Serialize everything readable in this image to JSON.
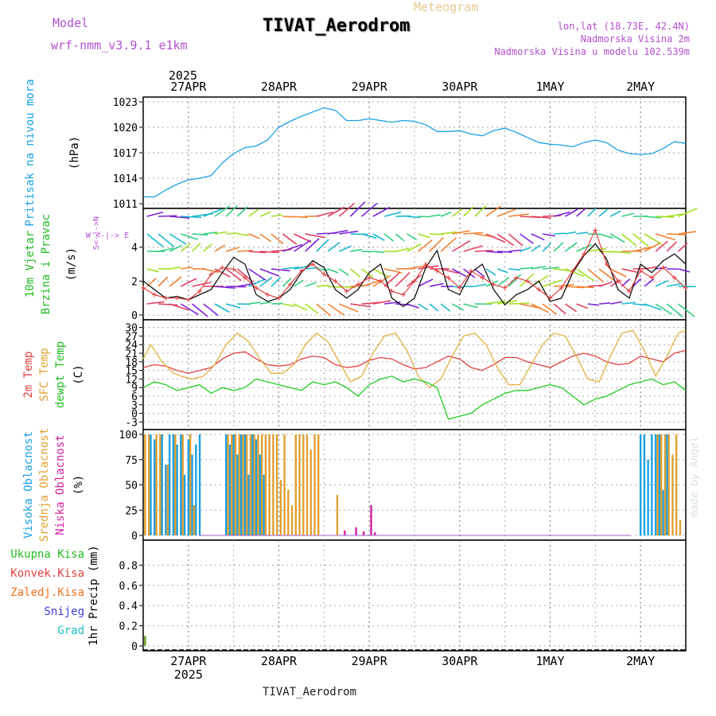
{
  "header": {
    "model_label": "Model",
    "model_name": "wrf-nmm_v3.9.1 e1km",
    "title": "TIVAT_Aerodrom",
    "product": "Meteogram",
    "lonlat": "lon,lat (18.73E, 42.4N)",
    "elevation": "Nadmorska Visina 2m",
    "model_elevation": "Nadmorska Visina u modelu 102.539m",
    "footer_title": "TIVAT_Aerodrom",
    "credit": "made by Angel",
    "colors": {
      "model": "#b44fd0",
      "product": "#e8c890",
      "title": "#000000"
    }
  },
  "time_axis": {
    "year_label": "2025",
    "day_labels": [
      "27APR",
      "28APR",
      "29APR",
      "30APR",
      "1MAY",
      "2MAY"
    ],
    "day_hours": [
      12,
      36,
      60,
      84,
      108,
      132
    ],
    "hour_range": [
      0,
      144
    ]
  },
  "chart_data": [
    {
      "type": "line",
      "panel": "pressure",
      "ylabel": "Pritisak na nivou mora",
      "unit": "(hPa)",
      "ylim": [
        1011,
        1023
      ],
      "yticks": [
        "1011",
        "1014",
        "1017",
        "1020",
        "1023"
      ],
      "grid": true,
      "series": [
        {
          "color": "#1aa0e6",
          "x": [
            0,
            3,
            6,
            9,
            12,
            15,
            18,
            21,
            24,
            27,
            30,
            33,
            36,
            39,
            42,
            45,
            48,
            51,
            54,
            57,
            60,
            63,
            66,
            69,
            72,
            75,
            78,
            81,
            84,
            87,
            90,
            93,
            96,
            99,
            102,
            105,
            108,
            111,
            114,
            117,
            120,
            123,
            126,
            129,
            132,
            135,
            138,
            141,
            144
          ],
          "y": [
            1011.8,
            1011.8,
            1012.6,
            1013.3,
            1013.8,
            1014.0,
            1014.3,
            1015.8,
            1016.9,
            1017.6,
            1017.8,
            1018.5,
            1020.0,
            1020.7,
            1021.3,
            1021.8,
            1022.3,
            1022.0,
            1020.8,
            1020.8,
            1021.0,
            1020.8,
            1020.6,
            1020.8,
            1020.7,
            1020.3,
            1019.5,
            1019.5,
            1019.6,
            1019.2,
            1019.0,
            1019.6,
            1019.9,
            1019.4,
            1018.8,
            1018.2,
            1018.0,
            1017.9,
            1017.7,
            1018.2,
            1018.5,
            1018.2,
            1017.3,
            1016.9,
            1016.8,
            1016.9,
            1017.5,
            1018.3,
            1018.1
          ]
        }
      ]
    },
    {
      "type": "line",
      "panel": "wind",
      "ylabel": "10m Vjetar Brzina i Pravac",
      "unit": "(m/s)",
      "direction_key": "W <-|-> E",
      "direction_key_v": "S<-|->N",
      "ylim": [
        0,
        6
      ],
      "yticks": [
        "0",
        "2",
        "4"
      ],
      "grid": true,
      "series": [
        {
          "color": "#000000",
          "x": [
            0,
            3,
            6,
            9,
            12,
            15,
            18,
            21,
            24,
            27,
            30,
            33,
            36,
            39,
            42,
            45,
            48,
            51,
            54,
            57,
            60,
            63,
            66,
            69,
            72,
            75,
            78,
            81,
            84,
            87,
            90,
            93,
            96,
            99,
            102,
            105,
            108,
            111,
            114,
            117,
            120,
            123,
            126,
            129,
            132,
            135,
            138,
            141,
            144
          ],
          "y": [
            2.0,
            1.5,
            1.0,
            1.1,
            0.9,
            1.2,
            1.5,
            2.5,
            3.4,
            3.0,
            1.2,
            0.8,
            1.0,
            1.5,
            2.5,
            3.2,
            2.8,
            1.5,
            1.0,
            1.5,
            2.5,
            3.0,
            1.0,
            0.5,
            1.0,
            2.8,
            3.8,
            1.5,
            1.2,
            2.5,
            3.0,
            1.5,
            0.6,
            1.2,
            1.5,
            2.0,
            0.8,
            1.0,
            2.5,
            3.5,
            4.2,
            3.3,
            1.5,
            1.0,
            3.0,
            2.5,
            3.2,
            3.6,
            3.0
          ]
        },
        {
          "color": "#e04040",
          "x": [
            0,
            3,
            6,
            9,
            12,
            15,
            18,
            21,
            24,
            27,
            30,
            33,
            36,
            39,
            42,
            45,
            48,
            51,
            54,
            57,
            60,
            63,
            66,
            69,
            72,
            75,
            78,
            81,
            84,
            87,
            90,
            93,
            96,
            99,
            102,
            105,
            108,
            111,
            114,
            117,
            120,
            123,
            126,
            129,
            132,
            135,
            138,
            141,
            144
          ],
          "y": [
            1.6,
            1.2,
            1.0,
            1.0,
            0.9,
            1.4,
            2.4,
            2.8,
            2.7,
            2.2,
            1.6,
            1.2,
            1.0,
            1.8,
            2.6,
            3.0,
            2.4,
            2.0,
            1.4,
            1.8,
            2.2,
            2.0,
            1.4,
            1.2,
            2.0,
            3.0,
            2.6,
            2.2,
            1.6,
            2.6,
            2.2,
            1.8,
            1.6,
            2.2,
            2.0,
            1.5,
            1.0,
            1.6,
            2.6,
            3.6,
            5.0,
            3.0,
            2.0,
            1.4,
            2.6,
            2.2,
            2.8,
            2.2,
            1.6
          ]
        }
      ]
    },
    {
      "type": "line",
      "panel": "temperature",
      "ylabels": [
        "2m Temp",
        "SFC Temp",
        "dewpt Temp"
      ],
      "ylabel_colors": [
        "#e04040",
        "#e0a030",
        "#22bb22"
      ],
      "unit": "(C)",
      "ylim": [
        -4,
        31
      ],
      "yticks": [
        "-3",
        "0",
        "3",
        "6",
        "9",
        "12",
        "15",
        "18",
        "21",
        "24",
        "27",
        "30"
      ],
      "grid": true,
      "series": [
        {
          "color": "#e04040",
          "x": [
            0,
            3,
            6,
            9,
            12,
            15,
            18,
            21,
            24,
            27,
            30,
            33,
            36,
            39,
            42,
            45,
            48,
            51,
            54,
            57,
            60,
            63,
            66,
            69,
            72,
            75,
            78,
            81,
            84,
            87,
            90,
            93,
            96,
            99,
            102,
            105,
            108,
            111,
            114,
            117,
            120,
            123,
            126,
            129,
            132,
            135,
            138,
            141,
            144
          ],
          "y": [
            16,
            17,
            16.5,
            15,
            14,
            15,
            16,
            19,
            21,
            21.5,
            19,
            17,
            16.5,
            17,
            19,
            20,
            19.5,
            17,
            16,
            16.5,
            18.5,
            19.5,
            19,
            17,
            15.5,
            16,
            18,
            20,
            19,
            16,
            15,
            17,
            19.5,
            19.5,
            18,
            17,
            16,
            18,
            20,
            21,
            20,
            18,
            17,
            17.5,
            20,
            19,
            18,
            21,
            22
          ]
        },
        {
          "color": "#e0b040",
          "x": [
            0,
            2,
            5,
            8,
            10,
            13,
            16,
            19,
            22,
            25,
            28,
            31,
            34,
            37,
            40,
            43,
            46,
            49,
            52,
            55,
            58,
            61,
            64,
            67,
            70,
            73,
            76,
            79,
            82,
            85,
            88,
            91,
            94,
            97,
            100,
            103,
            106,
            109,
            112,
            115,
            118,
            121,
            124,
            127,
            130,
            133,
            136,
            139,
            142,
            144
          ],
          "y": [
            19,
            24,
            18,
            14,
            13,
            12,
            13,
            17,
            24,
            28,
            25,
            19,
            14,
            14,
            17,
            24,
            28,
            25,
            18,
            11,
            13,
            21,
            27,
            28,
            22,
            13,
            9,
            12,
            20,
            27,
            28,
            24,
            16,
            10,
            10,
            17,
            24,
            28,
            27,
            20,
            12,
            11,
            20,
            28,
            29,
            22,
            13,
            20,
            28,
            29
          ]
        },
        {
          "color": "#22cc22",
          "x": [
            0,
            3,
            6,
            9,
            12,
            15,
            18,
            21,
            24,
            27,
            30,
            33,
            36,
            39,
            42,
            45,
            48,
            51,
            54,
            57,
            60,
            63,
            66,
            69,
            72,
            75,
            78,
            81,
            84,
            87,
            90,
            93,
            96,
            99,
            102,
            105,
            108,
            111,
            114,
            117,
            120,
            123,
            126,
            129,
            132,
            135,
            138,
            141,
            144
          ],
          "y": [
            9,
            11,
            10,
            8,
            9,
            10,
            7,
            9,
            8,
            9,
            12,
            11,
            10,
            9,
            8,
            11,
            10,
            11,
            9,
            6,
            10,
            12,
            13,
            11,
            12,
            11,
            9,
            -2,
            -1,
            0,
            3,
            5,
            7,
            8,
            8,
            9,
            10,
            9,
            6,
            3,
            5,
            6,
            8,
            10,
            11,
            12,
            10,
            11,
            8
          ]
        }
      ]
    },
    {
      "type": "bar",
      "panel": "cloud",
      "ylabels": [
        "Visoka Oblacnost",
        "Srednja Oblacnost",
        "Niska Oblacnost"
      ],
      "ylabel_colors": [
        "#1aa0e6",
        "#e0a030",
        "#d020a0"
      ],
      "unit": "(%)",
      "ylim": [
        0,
        100
      ],
      "yticks": [
        "0",
        "25",
        "50",
        "75",
        "100"
      ],
      "grid": true,
      "series": [
        {
          "name": "Visoka Oblacnost",
          "color": "#1aa0e6",
          "x": [
            2,
            3,
            5,
            6,
            7,
            8,
            9,
            10,
            11,
            12,
            13,
            14,
            15,
            22,
            23,
            24,
            25,
            26,
            27,
            28,
            29,
            30,
            31,
            32,
            132,
            133,
            134,
            135,
            136,
            137,
            138,
            139
          ],
          "y": [
            100,
            95,
            100,
            70,
            100,
            100,
            90,
            100,
            60,
            95,
            80,
            90,
            100,
            100,
            90,
            100,
            80,
            100,
            100,
            60,
            100,
            95,
            80,
            60,
            100,
            100,
            75,
            100,
            100,
            100,
            45,
            100
          ]
        },
        {
          "name": "Srednja Oblacnost",
          "color": "#e0a030",
          "x": [
            0.5,
            1.5,
            3.5,
            4.5,
            6.5,
            8.5,
            10.5,
            12.5,
            13.5,
            22.5,
            23.5,
            24.5,
            25.5,
            26.5,
            27.5,
            28.5,
            29.5,
            30.5,
            31.5,
            32.5,
            33.5,
            34.5,
            35.5,
            36.5,
            37.5,
            38.5,
            39.5,
            40.5,
            41.5,
            42.5,
            43.5,
            44.5,
            45.5,
            46.5,
            51.5,
            136.5,
            137.5,
            138.5,
            139.5,
            140.5,
            141.5,
            142.5
          ],
          "y": [
            100,
            100,
            100,
            100,
            70,
            100,
            100,
            100,
            30,
            100,
            100,
            100,
            100,
            100,
            100,
            100,
            100,
            100,
            100,
            100,
            100,
            100,
            100,
            55,
            100,
            45,
            30,
            100,
            100,
            100,
            100,
            85,
            100,
            100,
            40,
            100,
            100,
            100,
            100,
            80,
            100,
            15
          ]
        },
        {
          "name": "Niska Oblacnost",
          "color": "#d020a0",
          "x": [
            53.5,
            56.5,
            58.5,
            60.5,
            61.5
          ],
          "y": [
            5,
            8,
            4,
            30,
            3
          ]
        }
      ]
    },
    {
      "type": "bar",
      "panel": "precip",
      "ylabel": "1hr Precip (mm)",
      "legend": [
        "Ukupna Kisa",
        "Konvek.Kisa",
        "Zaledj.Kisa",
        "Snijeg",
        "Grad"
      ],
      "legend_colors": [
        "#22bb22",
        "#e04040",
        "#f07020",
        "#4040e0",
        "#20c0c0"
      ],
      "ylim": [
        0,
        1.0
      ],
      "yticks": [
        "0",
        "0.2",
        "0.4",
        "0.6",
        "0.8"
      ],
      "grid": true,
      "series": [
        {
          "name": "Ukupna Kisa",
          "color": "#6a9a20",
          "x": [
            0.5
          ],
          "y": [
            0.1
          ]
        }
      ]
    }
  ]
}
